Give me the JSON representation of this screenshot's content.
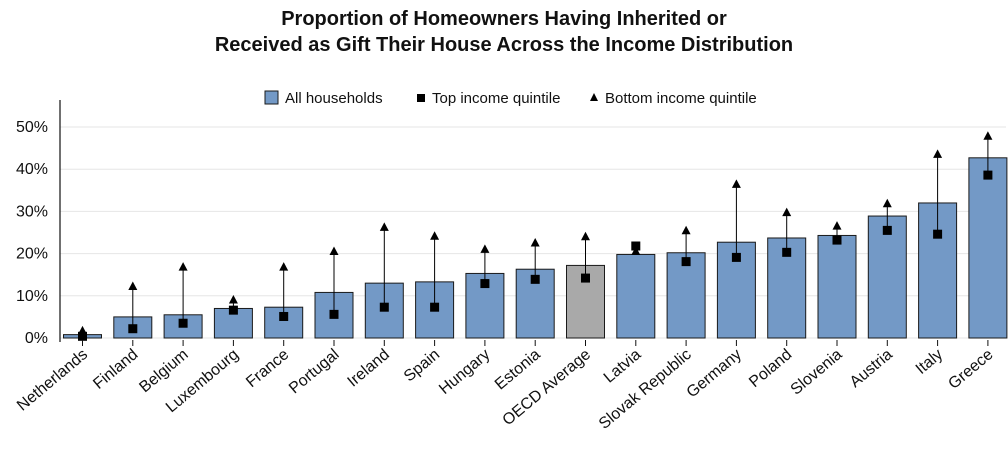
{
  "chart_data": {
    "type": "bar",
    "title_line1": "Proportion of Homeowners Having Inherited or",
    "title_line2": "Received as Gift Their House Across the Income Distribution",
    "xlabel": "",
    "ylabel": "",
    "ylim": [
      0,
      0.5
    ],
    "yticks": [
      "0%",
      "10%",
      "20%",
      "30%",
      "40%",
      "50%"
    ],
    "grid": true,
    "legend_position": "top-center",
    "categories": [
      "Netherlands",
      "Finland",
      "Belgium",
      "Luxembourg",
      "France",
      "Portugal",
      "Ireland",
      "Spain",
      "Hungary",
      "Estonia",
      "OECD Average",
      "Latvia",
      "Slovak Republic",
      "Germany",
      "Poland",
      "Slovenia",
      "Austria",
      "Italy",
      "Greece"
    ],
    "series": [
      {
        "name": "All households",
        "marker": "bar",
        "values": [
          0.008,
          0.05,
          0.055,
          0.07,
          0.073,
          0.108,
          0.13,
          0.133,
          0.153,
          0.163,
          0.172,
          0.198,
          0.202,
          0.227,
          0.237,
          0.243,
          0.289,
          0.32,
          0.427
        ]
      },
      {
        "name": "Top income quintile",
        "marker": "square",
        "values": [
          0.004,
          0.022,
          0.035,
          0.066,
          0.051,
          0.056,
          0.073,
          0.073,
          0.129,
          0.139,
          0.142,
          0.218,
          0.181,
          0.191,
          0.203,
          0.232,
          0.255,
          0.246,
          0.386
        ]
      },
      {
        "name": "Bottom income quintile",
        "marker": "triangle",
        "values": [
          0.017,
          0.122,
          0.168,
          0.09,
          0.168,
          0.205,
          0.262,
          0.241,
          0.21,
          0.225,
          0.24,
          0.205,
          0.254,
          0.364,
          0.297,
          0.265,
          0.318,
          0.435,
          0.478
        ]
      }
    ],
    "colors": {
      "bar": "#7399c6",
      "highlight_bar": "#a9a9a9",
      "bar_edge": "#1a1a1a",
      "marker": "#000000",
      "grid": "#e6e6e6",
      "axis": "#111111"
    },
    "highlight_category": "OECD Average"
  }
}
